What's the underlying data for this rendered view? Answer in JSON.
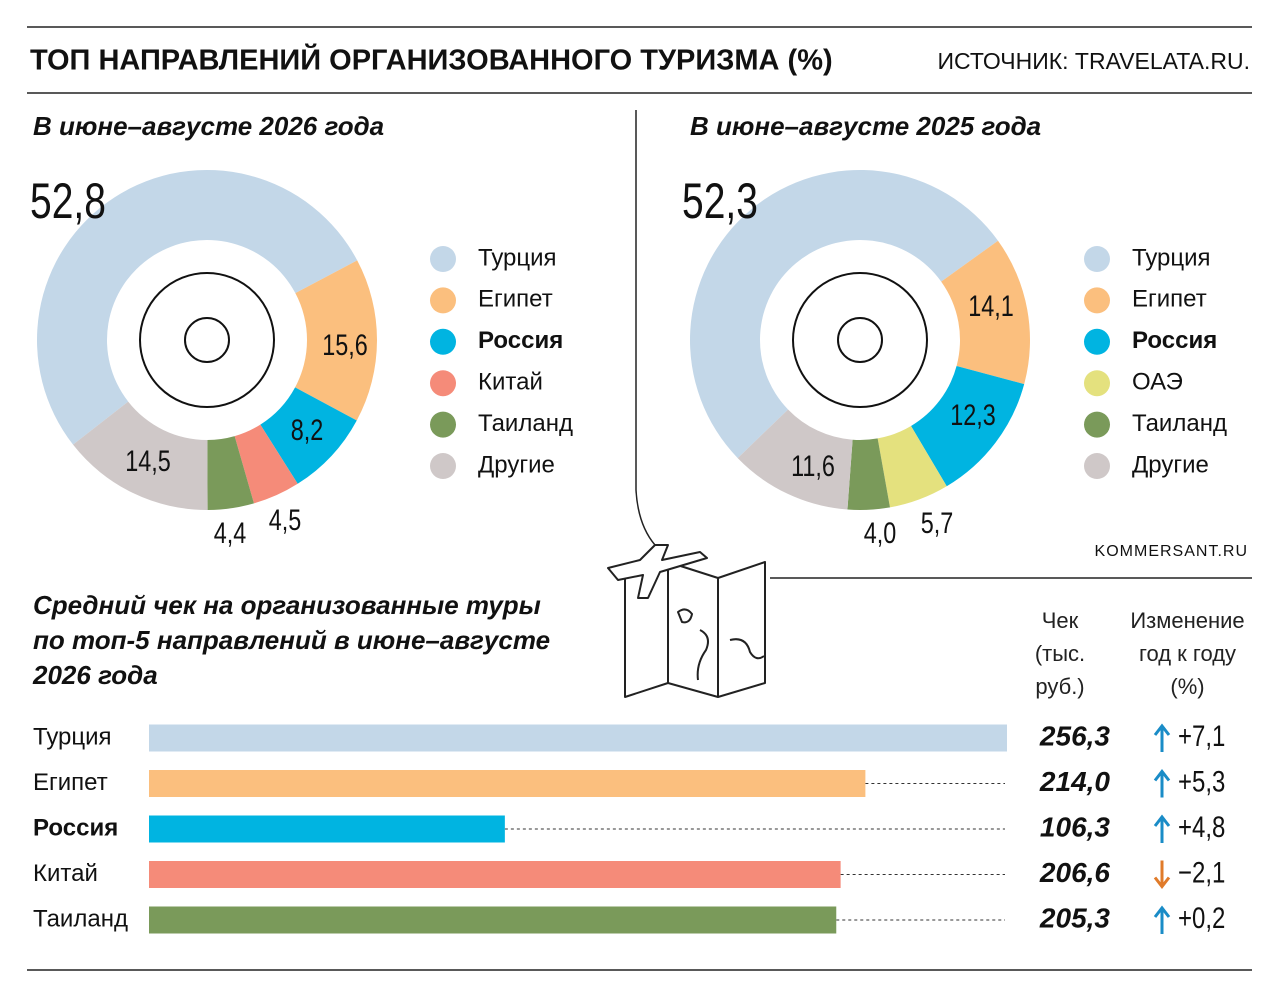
{
  "header": {
    "title": "ТОП НАПРАВЛЕНИЙ ОРГАНИЗОВАННОГО ТУРИЗМА (%)",
    "source": "ИСТОЧНИК: TRAVELATA.RU."
  },
  "credit": "KOMMERSANT.RU",
  "chart_data": [
    {
      "type": "donut",
      "title": "В июне–августе 2026 года",
      "categories": [
        "Турция",
        "Египет",
        "Россия",
        "Китай",
        "Таиланд",
        "Другие"
      ],
      "values": [
        52.8,
        15.6,
        8.2,
        4.5,
        4.4,
        14.5
      ],
      "value_labels": [
        "52,8",
        "15,6",
        "8,2",
        "4,5",
        "4,4",
        "14,5"
      ],
      "colors": [
        "#c3d7e8",
        "#fbbf7e",
        "#00b4e1",
        "#f58b79",
        "#7a9a5a",
        "#cfc8c8"
      ],
      "highlight": 2
    },
    {
      "type": "donut",
      "title": "В июне–августе 2025 года",
      "categories": [
        "Турция",
        "Египет",
        "Россия",
        "ОАЭ",
        "Таиланд",
        "Другие"
      ],
      "values": [
        52.3,
        14.1,
        12.3,
        5.7,
        4.0,
        11.6
      ],
      "value_labels": [
        "52,3",
        "14,1",
        "12,3",
        "5,7",
        "4,0",
        "11,6"
      ],
      "colors": [
        "#c3d7e8",
        "#fbbf7e",
        "#00b4e1",
        "#e4e17e",
        "#7a9a5a",
        "#cfc8c8"
      ],
      "highlight": 2
    },
    {
      "type": "bar",
      "orientation": "horizontal",
      "title": "Средний чек на организованные туры по топ-5 направлений в июне–августе 2026 года",
      "categories": [
        "Турция",
        "Египет",
        "Россия",
        "Китай",
        "Таиланд"
      ],
      "highlight": 2,
      "series": [
        {
          "name": "Чек (тыс. руб.)",
          "colors": [
            "#c3d7e8",
            "#fbbf7e",
            "#00b4e1",
            "#f58b79",
            "#7a9a5a"
          ],
          "values": [
            256.3,
            214.0,
            106.3,
            206.6,
            205.3
          ],
          "value_labels": [
            "256,3",
            "214,0",
            "106,3",
            "206,6",
            "205,3"
          ]
        },
        {
          "name": "Изменение год к году (%)",
          "values": [
            7.1,
            5.3,
            4.8,
            -2.1,
            0.2
          ],
          "value_labels": [
            "+7,1",
            "+5,3",
            "+4,8",
            "−2,1",
            "+0,2"
          ]
        }
      ]
    }
  ]
}
